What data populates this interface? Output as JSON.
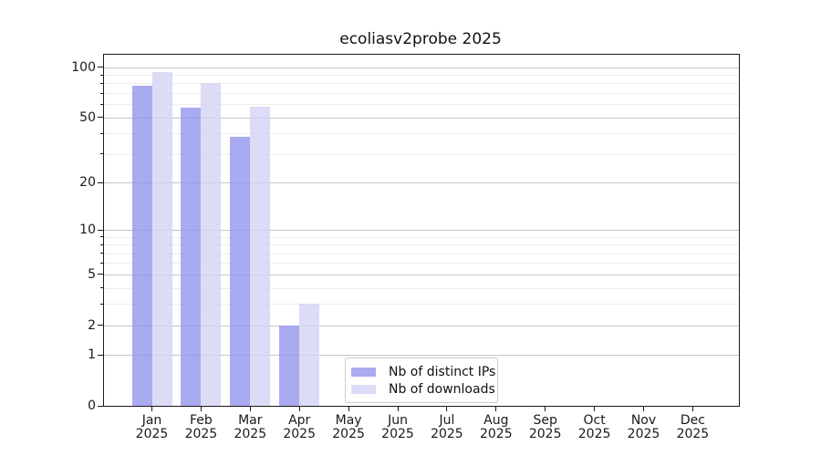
{
  "chart_data": {
    "type": "bar",
    "title": "ecoliasv2probe 2025",
    "categories": [
      "Jan",
      "Feb",
      "Mar",
      "Apr",
      "May",
      "Jun",
      "Jul",
      "Aug",
      "Sep",
      "Oct",
      "Nov",
      "Dec"
    ],
    "x_year_label": "2025",
    "series": [
      {
        "name": "Nb of distinct IPs",
        "color": "#9595ee",
        "values": [
          77,
          57,
          38,
          2,
          0,
          0,
          0,
          0,
          0,
          0,
          0,
          0
        ]
      },
      {
        "name": "Nb of downloads",
        "color": "#d3d3f5",
        "values": [
          94,
          80,
          58,
          3,
          0,
          0,
          0,
          0,
          0,
          0,
          0,
          0
        ]
      }
    ],
    "y_scale": "log(1+x)",
    "y_major_ticks": [
      0,
      1,
      2,
      5,
      10,
      20,
      50,
      100
    ],
    "y_minor_ticks": [
      3,
      4,
      6,
      7,
      8,
      9,
      30,
      40,
      60,
      70,
      80,
      90
    ],
    "ylim": [
      0,
      118
    ],
    "xlabel": "",
    "ylabel": "",
    "grid": "horizontal",
    "legend_position": "lower center inside",
    "bar_alpha": 0.8
  }
}
